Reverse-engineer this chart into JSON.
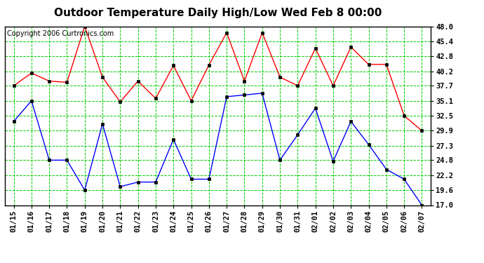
{
  "title": "Outdoor Temperature Daily High/Low Wed Feb 8 00:00",
  "copyright": "Copyright 2006 Curtronics.com",
  "x_labels": [
    "01/15",
    "01/16",
    "01/17",
    "01/18",
    "01/19",
    "01/20",
    "01/21",
    "01/22",
    "01/23",
    "01/24",
    "01/25",
    "01/26",
    "01/27",
    "01/28",
    "01/29",
    "01/30",
    "01/31",
    "02/01",
    "02/02",
    "02/03",
    "02/04",
    "02/05",
    "02/06",
    "02/07"
  ],
  "high_temps": [
    37.7,
    39.9,
    38.5,
    38.3,
    48.0,
    39.2,
    34.9,
    38.5,
    35.5,
    41.2,
    35.1,
    41.3,
    46.9,
    38.5,
    46.9,
    39.2,
    37.7,
    44.2,
    37.7,
    44.4,
    41.4,
    41.4,
    32.5,
    29.9
  ],
  "low_temps": [
    31.5,
    35.1,
    24.8,
    24.8,
    19.6,
    31.1,
    20.2,
    21.0,
    21.0,
    28.4,
    21.5,
    21.5,
    35.8,
    36.1,
    36.4,
    24.8,
    29.2,
    33.8,
    24.6,
    31.5,
    27.5,
    23.2,
    21.5,
    17.0
  ],
  "high_color": "#ff0000",
  "low_color": "#0000ff",
  "bg_color": "#ffffff",
  "grid_color": "#00cc00",
  "border_color": "#000000",
  "y_ticks": [
    17.0,
    19.6,
    22.2,
    24.8,
    27.3,
    29.9,
    32.5,
    35.1,
    37.7,
    40.2,
    42.8,
    45.4,
    48.0
  ],
  "ylim_min": 17.0,
  "ylim_max": 48.0,
  "title_fontsize": 11,
  "copyright_fontsize": 7,
  "tick_fontsize": 7.5,
  "marker_size": 3.0,
  "line_width": 1.0
}
